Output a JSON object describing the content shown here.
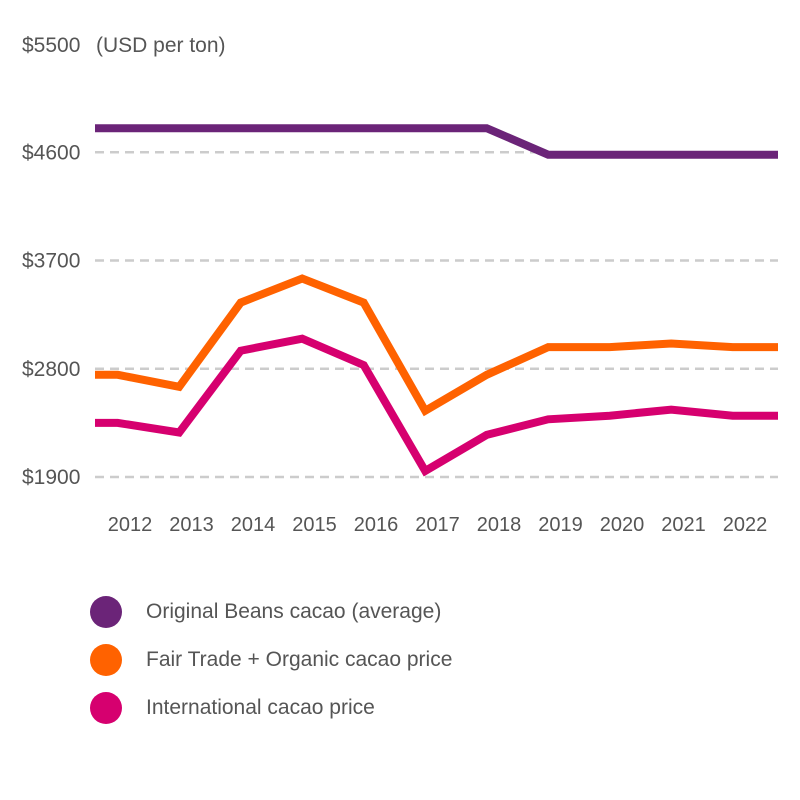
{
  "chart_data": {
    "type": "line",
    "title": "",
    "ylabel": "(USD per ton)",
    "xlabel": "",
    "categories": [
      "2012",
      "2013",
      "2014",
      "2015",
      "2016",
      "2017",
      "2018",
      "2019",
      "2020",
      "2021",
      "2022"
    ],
    "y_tick_labels": [
      "$5500",
      "$4600",
      "$3700",
      "$2800",
      "$1900"
    ],
    "y_ticks": [
      5500,
      4600,
      3700,
      2800,
      1900
    ],
    "ylim": [
      1900,
      5500
    ],
    "grid": "dashed horizontal",
    "legend_position": "bottom",
    "series": [
      {
        "name": "Original Beans cacao (average)",
        "color": "#6b2478",
        "x": [
          2011.8,
          2012.8,
          2013.8,
          2014.8,
          2015.8,
          2016.8,
          2017.8,
          2018.8,
          2019.8,
          2020.8,
          2021.8
        ],
        "values": [
          4800,
          4800,
          4800,
          4800,
          4800,
          4800,
          4800,
          4580,
          4580,
          4580,
          4580
        ]
      },
      {
        "name": "Fair Trade + Organic cacao price",
        "color": "#ff6200",
        "x": [
          2011.8,
          2012.8,
          2013.8,
          2014.8,
          2015.8,
          2016.8,
          2017.8,
          2018.8,
          2019.8,
          2020.8,
          2021.8
        ],
        "values": [
          2750,
          2650,
          3350,
          3550,
          3350,
          2450,
          2750,
          2980,
          2980,
          3010,
          2980
        ]
      },
      {
        "name": "International cacao price",
        "color": "#d6006f",
        "x": [
          2011.8,
          2012.8,
          2013.8,
          2014.8,
          2015.8,
          2016.8,
          2017.8,
          2018.8,
          2019.8,
          2020.8,
          2021.8
        ],
        "values": [
          2350,
          2270,
          2950,
          3050,
          2830,
          1950,
          2250,
          2380,
          2410,
          2460,
          2410
        ]
      }
    ]
  }
}
